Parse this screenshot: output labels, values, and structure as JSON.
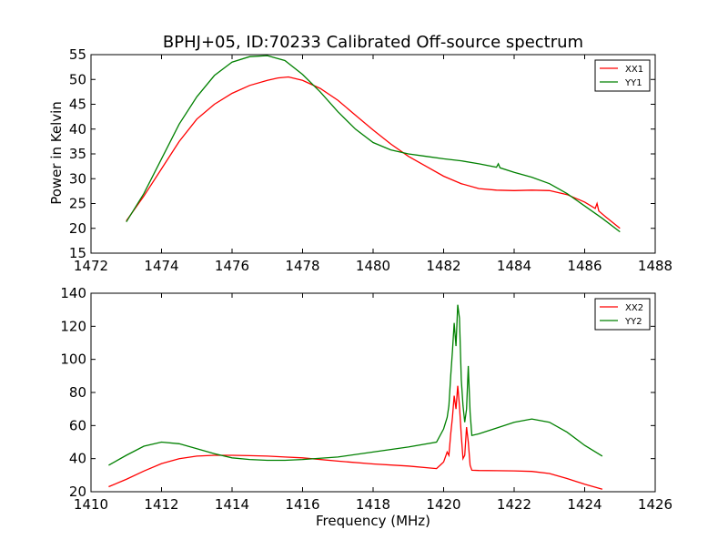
{
  "figure": {
    "title": "BPHJ+05, ID:70233 Calibrated Off-source spectrum",
    "xlabel": "Frequency (MHz)",
    "ylabel": "Power in Kelvin"
  },
  "colors": {
    "red": "#ff0000",
    "green": "#008000"
  },
  "chart_data": [
    {
      "type": "line",
      "title": "BPHJ+05, ID:70233 Calibrated Off-source spectrum",
      "xlabel": "",
      "ylabel": "Power in Kelvin",
      "xlim": [
        1472,
        1488
      ],
      "ylim": [
        15,
        55
      ],
      "xticks": [
        1472,
        1474,
        1476,
        1478,
        1480,
        1482,
        1484,
        1486,
        1488
      ],
      "yticks": [
        15,
        20,
        25,
        30,
        35,
        40,
        45,
        50,
        55
      ],
      "grid": false,
      "legend_position": "top-right",
      "series": [
        {
          "name": "XX1",
          "color": "#ff0000",
          "x": [
            1473.0,
            1473.5,
            1474.0,
            1474.5,
            1475.0,
            1475.5,
            1476.0,
            1476.5,
            1477.0,
            1477.3,
            1477.6,
            1478.0,
            1478.5,
            1479.0,
            1479.5,
            1480.0,
            1480.5,
            1481.0,
            1481.5,
            1482.0,
            1482.5,
            1483.0,
            1483.5,
            1484.0,
            1484.5,
            1485.0,
            1485.5,
            1486.0,
            1486.3,
            1486.35,
            1486.4,
            1486.6,
            1487.0
          ],
          "y": [
            21.5,
            26.5,
            32.0,
            37.5,
            42.0,
            45.0,
            47.2,
            48.8,
            49.8,
            50.3,
            50.5,
            49.8,
            48.2,
            45.8,
            42.8,
            39.8,
            37.0,
            34.5,
            32.5,
            30.5,
            29.0,
            28.0,
            27.7,
            27.6,
            27.7,
            27.6,
            26.8,
            25.3,
            24.0,
            25.0,
            23.5,
            22.3,
            20.0
          ]
        },
        {
          "name": "YY1",
          "color": "#008000",
          "x": [
            1473.0,
            1473.5,
            1474.0,
            1474.5,
            1475.0,
            1475.5,
            1476.0,
            1476.5,
            1477.0,
            1477.5,
            1478.0,
            1478.5,
            1479.0,
            1479.5,
            1480.0,
            1480.5,
            1481.0,
            1481.5,
            1482.0,
            1482.5,
            1483.0,
            1483.5,
            1483.55,
            1483.6,
            1484.0,
            1484.5,
            1485.0,
            1485.5,
            1486.0,
            1486.5,
            1487.0
          ],
          "y": [
            21.3,
            27.0,
            34.0,
            41.0,
            46.5,
            50.8,
            53.5,
            54.6,
            54.8,
            53.8,
            51.0,
            47.5,
            43.5,
            40.0,
            37.3,
            35.8,
            35.0,
            34.5,
            34.0,
            33.6,
            33.0,
            32.3,
            33.0,
            32.2,
            31.3,
            30.3,
            29.0,
            27.0,
            24.5,
            22.0,
            19.3
          ]
        }
      ]
    },
    {
      "type": "line",
      "title": "",
      "xlabel": "Frequency (MHz)",
      "ylabel": "",
      "xlim": [
        1410,
        1426
      ],
      "ylim": [
        20,
        140
      ],
      "xticks": [
        1410,
        1412,
        1414,
        1416,
        1418,
        1420,
        1422,
        1424,
        1426
      ],
      "yticks": [
        20,
        40,
        60,
        80,
        100,
        120,
        140
      ],
      "grid": false,
      "legend_position": "top-right",
      "series": [
        {
          "name": "XX2",
          "color": "#ff0000",
          "x": [
            1410.5,
            1411.0,
            1411.5,
            1412.0,
            1412.5,
            1413.0,
            1413.5,
            1414.0,
            1414.5,
            1415.0,
            1415.5,
            1416.0,
            1417.0,
            1418.0,
            1419.0,
            1419.8,
            1419.95,
            1420.0,
            1420.1,
            1420.15,
            1420.2,
            1420.25,
            1420.3,
            1420.35,
            1420.4,
            1420.45,
            1420.5,
            1420.55,
            1420.6,
            1420.65,
            1420.7,
            1420.75,
            1420.8,
            1421.0,
            1421.5,
            1422.0,
            1422.5,
            1423.0,
            1423.5,
            1424.0,
            1424.5
          ],
          "y": [
            23.0,
            27.5,
            32.5,
            37.0,
            40.0,
            41.5,
            42.0,
            42.0,
            41.8,
            41.5,
            41.0,
            40.5,
            38.5,
            36.8,
            35.5,
            34.0,
            37.0,
            38.0,
            44.0,
            42.0,
            55.0,
            65.0,
            78.0,
            70.0,
            84.0,
            72.0,
            54.0,
            40.0,
            42.0,
            59.0,
            50.0,
            36.0,
            33.0,
            32.8,
            32.7,
            32.6,
            32.3,
            31.0,
            28.0,
            24.5,
            21.5
          ]
        },
        {
          "name": "YY2",
          "color": "#008000",
          "x": [
            1410.5,
            1411.0,
            1411.5,
            1412.0,
            1412.5,
            1413.0,
            1413.5,
            1414.0,
            1414.5,
            1415.0,
            1415.5,
            1416.0,
            1417.0,
            1418.0,
            1419.0,
            1419.8,
            1420.0,
            1420.1,
            1420.15,
            1420.2,
            1420.25,
            1420.3,
            1420.35,
            1420.4,
            1420.45,
            1420.5,
            1420.55,
            1420.6,
            1420.65,
            1420.7,
            1420.75,
            1420.8,
            1421.0,
            1421.5,
            1422.0,
            1422.5,
            1423.0,
            1423.5,
            1424.0,
            1424.5
          ],
          "y": [
            36.0,
            42.0,
            47.5,
            50.0,
            49.0,
            46.0,
            43.0,
            40.5,
            39.5,
            39.0,
            39.0,
            39.5,
            41.0,
            44.0,
            47.0,
            50.0,
            58.0,
            65.0,
            72.0,
            90.0,
            105.0,
            122.0,
            108.0,
            133.0,
            125.0,
            88.0,
            72.0,
            62.0,
            70.0,
            96.0,
            68.0,
            54.0,
            55.0,
            58.5,
            62.0,
            64.0,
            62.0,
            56.0,
            48.0,
            41.5
          ]
        }
      ]
    }
  ]
}
